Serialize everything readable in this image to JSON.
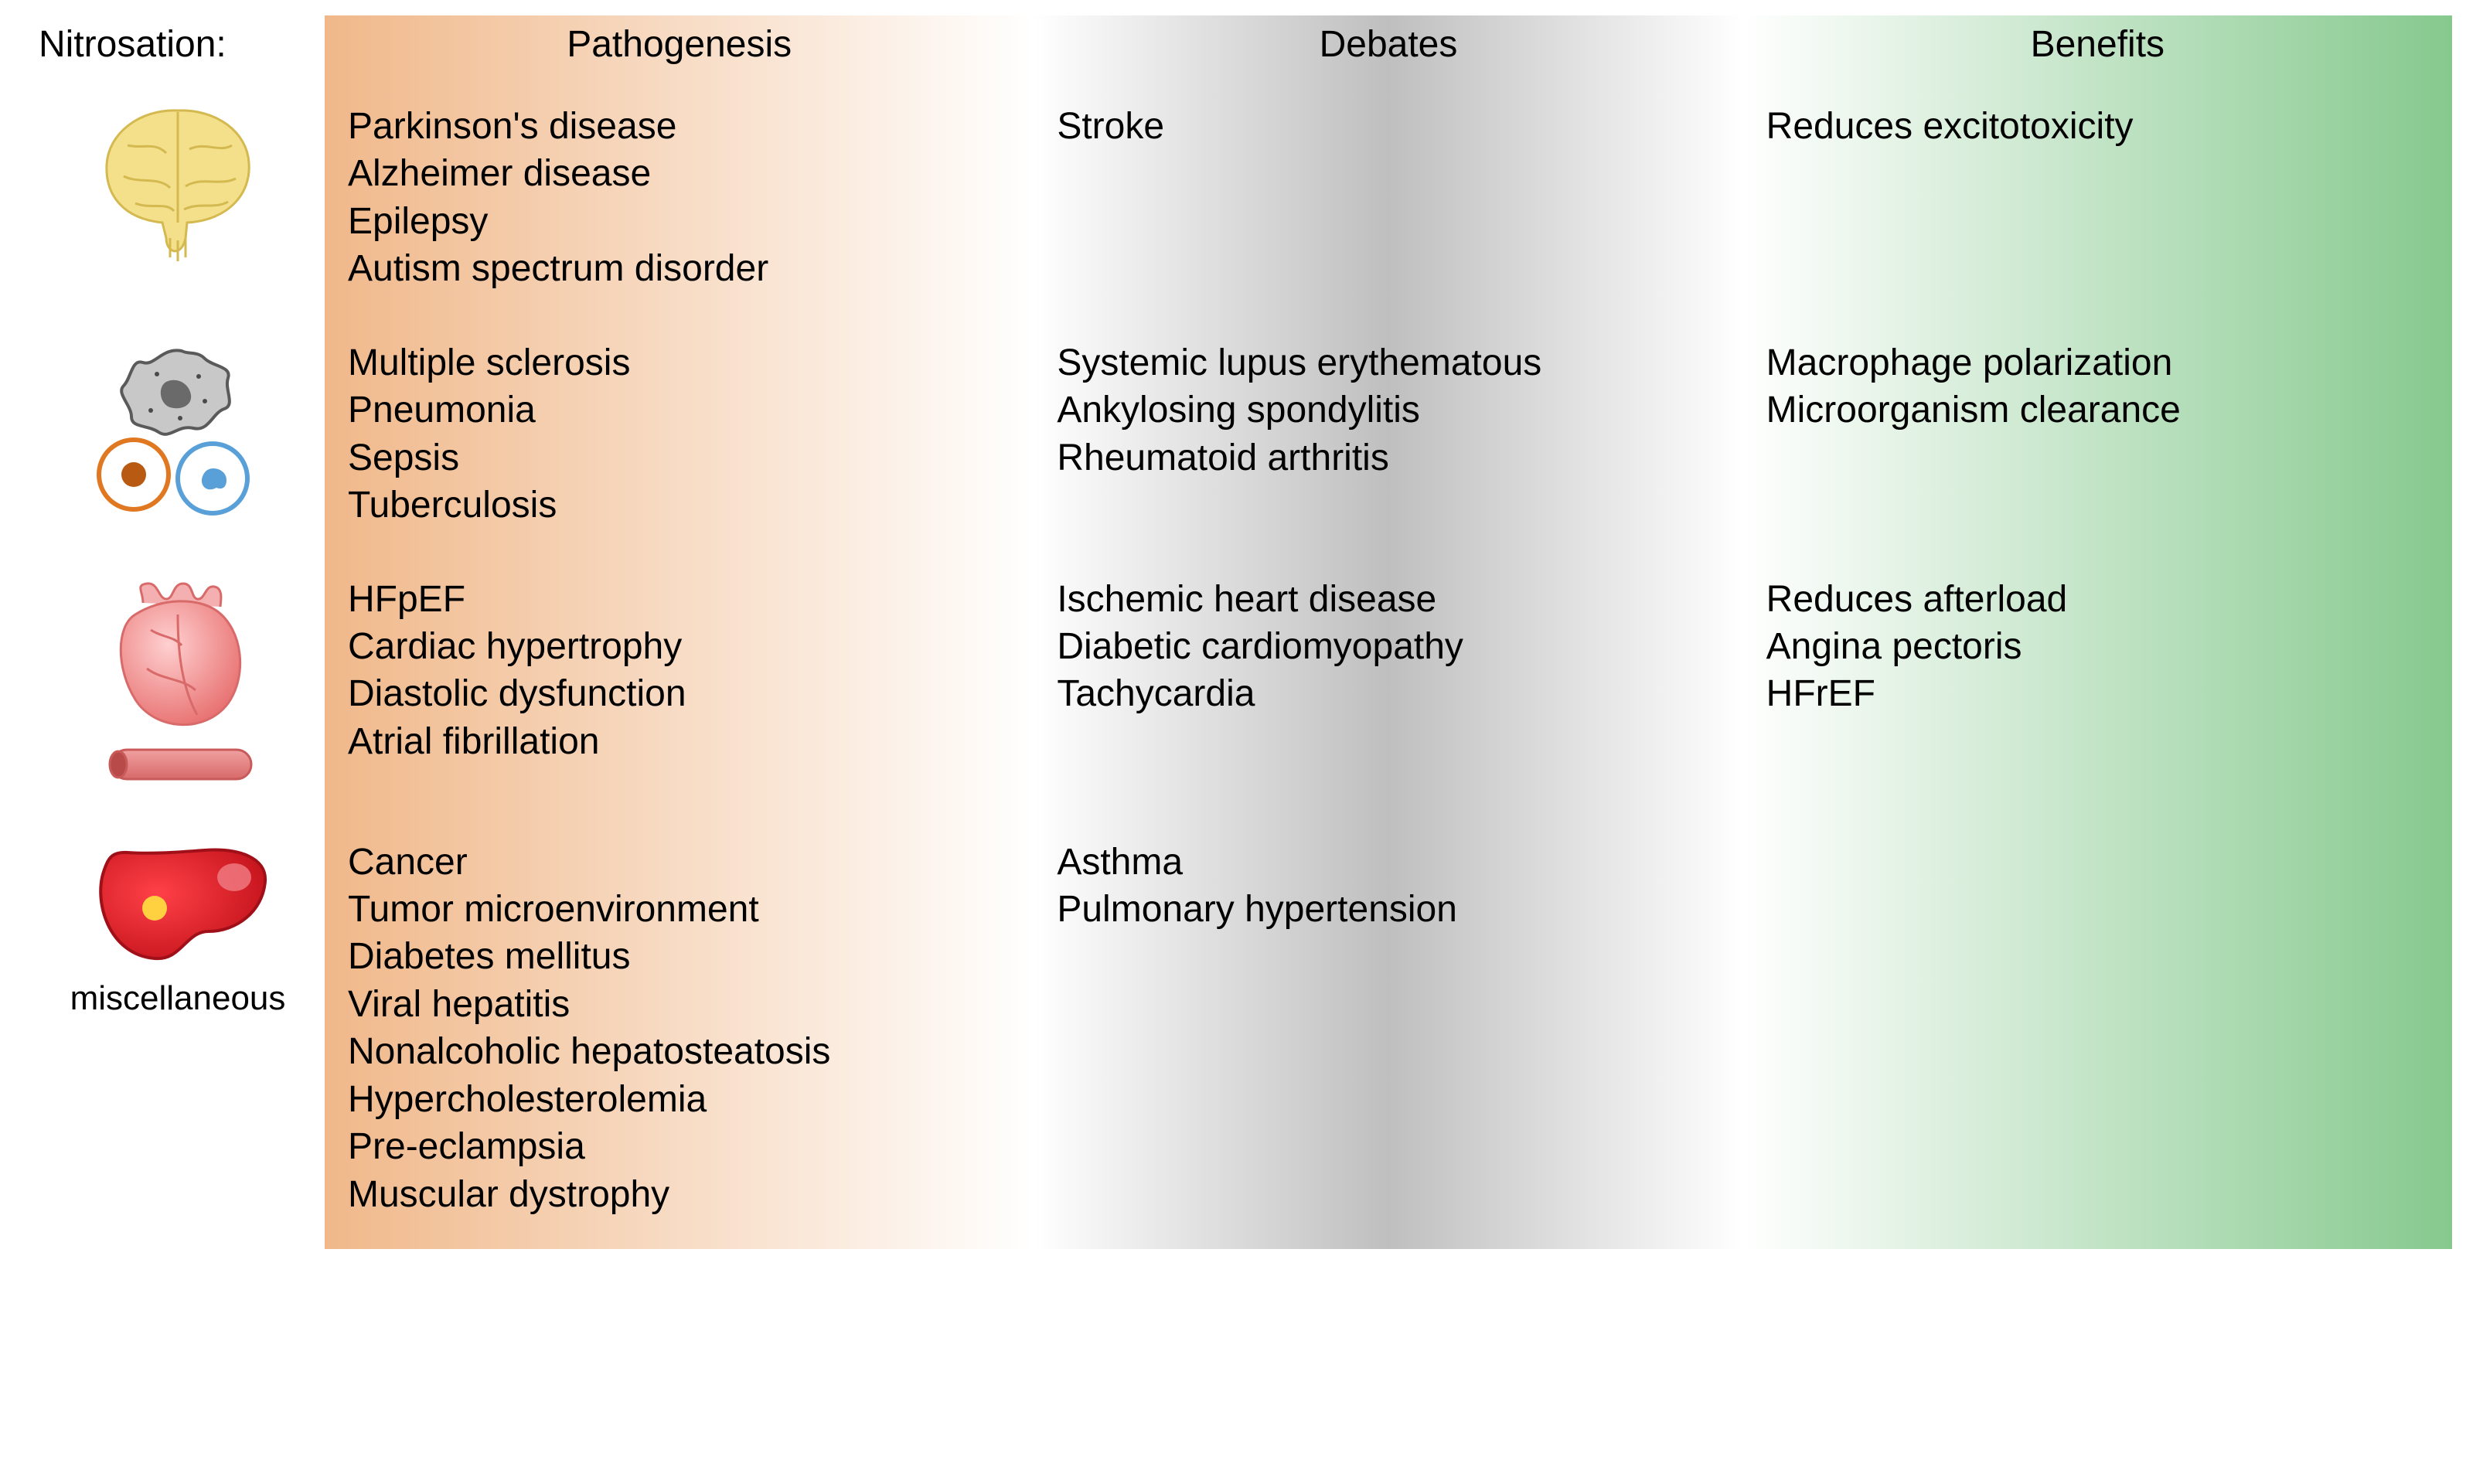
{
  "layout": {
    "type": "infographic",
    "grid_cols": [
      "380px",
      "1fr",
      "1fr",
      "1fr"
    ],
    "background_color": "#ffffff",
    "font_family": "Arial",
    "body_fontsize": 48,
    "header_fontsize": 48,
    "text_color": "#000000",
    "line_height": 1.28
  },
  "headers": {
    "left": "Nitrosation:",
    "pathogenesis": "Pathogenesis",
    "debates": "Debates",
    "benefits": "Benefits"
  },
  "columns": {
    "pathogenesis": {
      "gradient_from": "#f0b88a",
      "gradient_to": "#ffffff"
    },
    "debates": {
      "gradient_left": "#ffffff",
      "gradient_mid": "#bfbfbf",
      "gradient_right": "#ffffff"
    },
    "benefits": {
      "gradient_from": "#ffffff",
      "gradient_to": "#86c98e"
    }
  },
  "rows": [
    {
      "icon": "brain",
      "icon_colors": {
        "fill": "#f4e08a",
        "stroke": "#d4b850"
      },
      "pathogenesis": [
        "Parkinson's disease",
        "Alzheimer disease",
        "Epilepsy",
        "Autism spectrum disorder"
      ],
      "debates": [
        "Stroke"
      ],
      "benefits": [
        "Reduces excitotoxicity"
      ]
    },
    {
      "icon": "immune-cells",
      "icon_colors": {
        "macrophage_fill": "#b8b8b8",
        "macrophage_stroke": "#5a5a5a",
        "cell_a_fill": "#ffffff",
        "cell_a_stroke": "#e07822",
        "cell_a_nucleus": "#b85a12",
        "cell_b_fill": "#ffffff",
        "cell_b_stroke": "#5aa0d8",
        "cell_b_nucleus": "#5aa0d8"
      },
      "pathogenesis": [
        "Multiple sclerosis",
        "Pneumonia",
        "Sepsis",
        "Tuberculosis"
      ],
      "debates": [
        "Systemic lupus erythematous",
        "Ankylosing spondylitis",
        "Rheumatoid arthritis"
      ],
      "benefits": [
        "Macrophage polarization",
        "Microorganism clearance"
      ]
    },
    {
      "icon": "heart-vessel",
      "icon_colors": {
        "heart_fill": "#f08a8a",
        "heart_stroke": "#d86a6a",
        "vessel_fill": "#e87a7a",
        "vessel_stroke": "#c85a5a"
      },
      "pathogenesis": [
        "HFpEF",
        "Cardiac hypertrophy",
        "Diastolic dysfunction",
        "Atrial fibrillation"
      ],
      "debates": [
        "Ischemic heart disease",
        "Diabetic cardiomyopathy",
        "Tachycardia"
      ],
      "benefits": [
        "Reduces afterload",
        "Angina pectoris",
        "HFrEF"
      ]
    },
    {
      "icon": "liver",
      "icon_label": "miscellaneous",
      "icon_colors": {
        "fill": "#e01820",
        "stroke": "#a01018",
        "spot": "#ffd040",
        "highlight": "#f08a8a"
      },
      "pathogenesis": [
        "Cancer",
        "Tumor microenvironment",
        "Diabetes mellitus",
        "Viral hepatitis",
        "Nonalcoholic hepatosteatosis",
        "Hypercholesterolemia",
        "Pre-eclampsia",
        "Muscular dystrophy"
      ],
      "debates": [
        "Asthma",
        "Pulmonary hypertension"
      ],
      "benefits": []
    }
  ]
}
